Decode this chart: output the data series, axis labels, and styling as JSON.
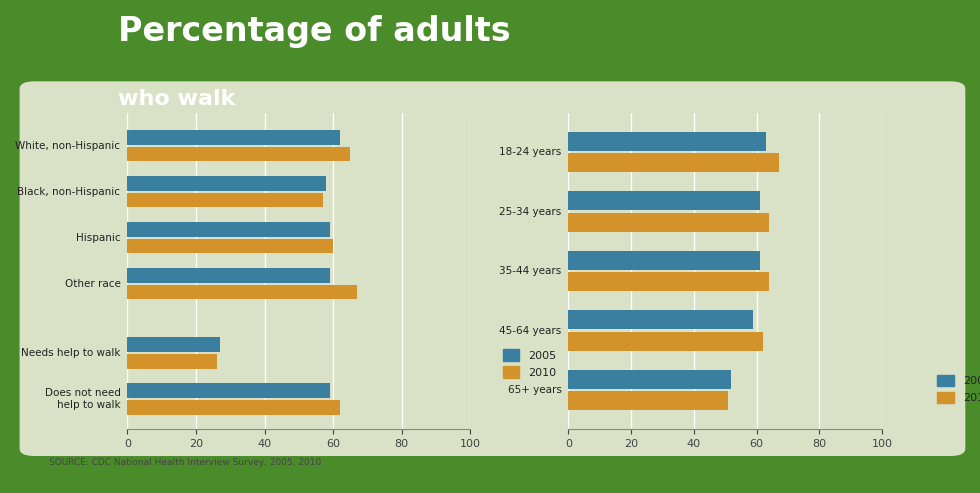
{
  "title_line1": "Percentage of adults",
  "title_line2": "who walk",
  "source": "SOURCE: CDC National Health Interview Survey, 2005, 2010.",
  "background_outer": "#4a8c2a",
  "background_panel": "#eeeedd",
  "color_2005": "#3a7fa0",
  "color_2010": "#d4922a",
  "left_categories": [
    "White, non-Hispanic",
    "Black, non-Hispanic",
    "Hispanic",
    "Other race",
    "Needs help to walk",
    "Does not need\nhelp to walk"
  ],
  "left_2005": [
    62,
    58,
    59,
    59,
    27,
    59
  ],
  "left_2010": [
    65,
    57,
    60,
    67,
    26,
    62
  ],
  "right_categories": [
    "18-24 years",
    "25-34 years",
    "35-44 years",
    "45-64 years",
    "65+ years"
  ],
  "right_2005": [
    63,
    61,
    61,
    59,
    52
  ],
  "right_2010": [
    67,
    64,
    64,
    62,
    51
  ],
  "xlim": [
    0,
    100
  ],
  "xticks": [
    0,
    20,
    40,
    60,
    80,
    100
  ],
  "bar_height": 0.32
}
